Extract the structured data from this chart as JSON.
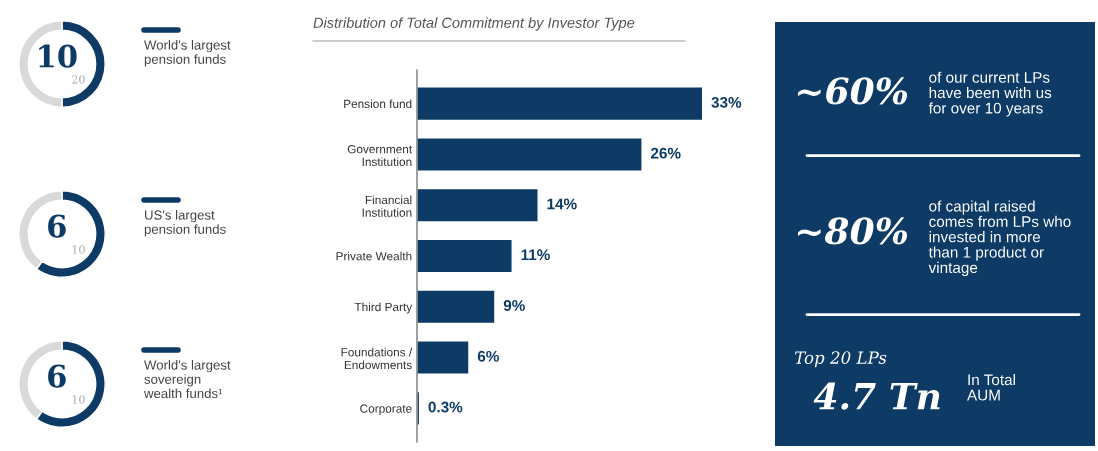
{
  "chart_data": [
    {
      "type": "donut",
      "title": "World's largest\npension funds",
      "categories": [
        null,
        null
      ],
      "values": [
        50,
        50
      ],
      "colors": [
        "#0d3b66",
        "#d9d9d9"
      ],
      "annotations": [
        "10",
        "20"
      ]
    },
    {
      "type": "donut",
      "title": "US's largest\npension funds",
      "categories": [
        null,
        null
      ],
      "values": [
        60,
        40
      ],
      "colors": [
        "#0d3b66",
        "#d9d9d9"
      ],
      "annotations": [
        "6",
        "10"
      ]
    },
    {
      "type": "donut",
      "title": "World's largest\nsovereign\nwealth funds¹",
      "categories": [
        null,
        null
      ],
      "values": [
        60,
        40
      ],
      "colors": [
        "#0d3b66",
        "#d9d9d9"
      ],
      "annotations": [
        "6",
        "10"
      ]
    },
    {
      "type": "bar",
      "orientation": "horizontal",
      "title": "Distribution of Total Commitment by Investor Type",
      "categories": [
        "Pension fund",
        "Government\nInstitution",
        "Financial\nInstitution",
        "Private Wealth",
        "Third Party",
        "Foundations /\nEndowments",
        "Corporate"
      ],
      "values": [
        33,
        26,
        14,
        11,
        9,
        6,
        0.3
      ],
      "value_labels": [
        "33%",
        "26%",
        "14%",
        "11%",
        "9%",
        "6%",
        "0.3%"
      ],
      "color": "#0d3b66"
    },
    {
      "type": "other",
      "annotations": [
        "~60%",
        "of our current LPs\nhave been with us\nfor over 10 years",
        "~80%",
        "of capital raised\ncomes from LPs who\ninvested in more\nthan 1 product or\nvintage",
        "Top 20 LPs",
        "4.7 Tn",
        "In Total\nAUM"
      ]
    }
  ]
}
